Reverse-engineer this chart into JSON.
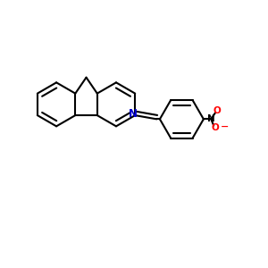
{
  "bg_color": "#ffffff",
  "bond_color": "#000000",
  "N_color": "#0000cc",
  "O_color": "#ff0000",
  "lw": 1.5,
  "figsize": [
    3.0,
    3.0
  ],
  "dpi": 100,
  "xlim": [
    0,
    10
  ],
  "ylim": [
    0,
    10
  ]
}
